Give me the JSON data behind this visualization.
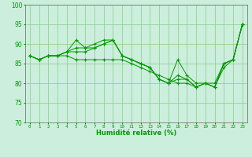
{
  "xlabel": "Humidité relative (%)",
  "xlim": [
    -0.5,
    23.5
  ],
  "ylim": [
    70,
    100
  ],
  "yticks": [
    70,
    75,
    80,
    85,
    90,
    95,
    100
  ],
  "xticks": [
    0,
    1,
    2,
    3,
    4,
    5,
    6,
    7,
    8,
    9,
    10,
    11,
    12,
    13,
    14,
    15,
    16,
    17,
    18,
    19,
    20,
    21,
    22,
    23
  ],
  "bg_color": "#cceedd",
  "grid_color": "#88cc88",
  "line_color": "#009900",
  "marker": "+",
  "lines": [
    [
      87,
      86,
      87,
      87,
      88,
      91,
      89,
      90,
      91,
      91,
      87,
      86,
      85,
      84,
      81,
      80,
      86,
      82,
      80,
      80,
      80,
      85,
      86,
      95
    ],
    [
      87,
      86,
      87,
      87,
      88,
      89,
      89,
      89,
      90,
      91,
      87,
      86,
      85,
      84,
      81,
      80,
      82,
      81,
      79,
      80,
      79,
      85,
      86,
      95
    ],
    [
      87,
      86,
      87,
      87,
      88,
      88,
      88,
      89,
      90,
      91,
      87,
      86,
      85,
      84,
      81,
      80,
      81,
      81,
      79,
      80,
      79,
      85,
      86,
      95
    ],
    [
      87,
      86,
      87,
      87,
      87,
      86,
      86,
      86,
      86,
      86,
      86,
      85,
      84,
      83,
      82,
      81,
      80,
      80,
      79,
      80,
      79,
      84,
      86,
      95
    ]
  ]
}
